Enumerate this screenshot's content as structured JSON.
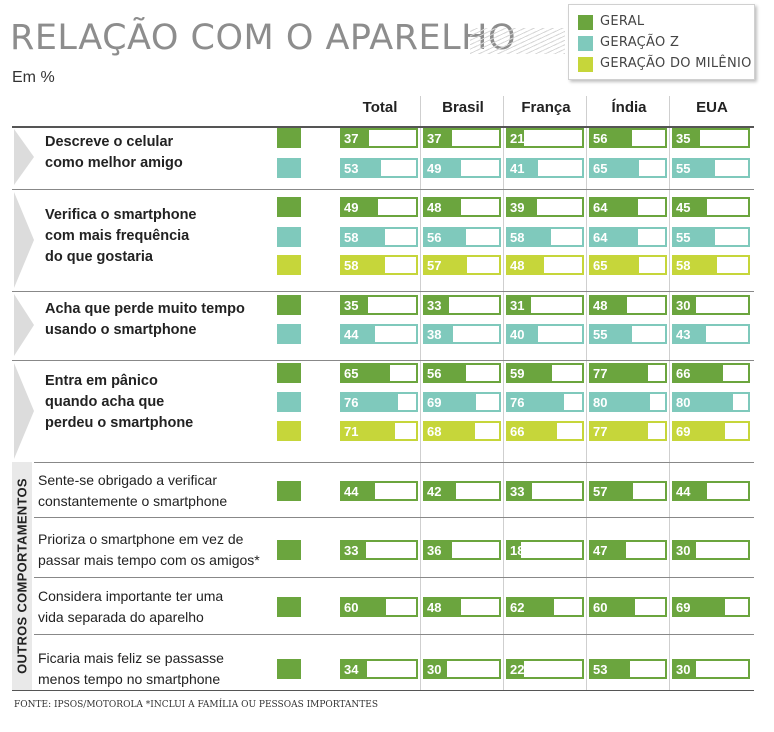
{
  "title": "RELAÇÃO COM O APARELHO",
  "subtitle": "Em %",
  "colors": {
    "geral": "#6ba53e",
    "geracao_z": "#7fc9bc",
    "geracao_milenio": "#c6d63a"
  },
  "legend": [
    {
      "label": "GERAL",
      "key": "geral"
    },
    {
      "label": "GERAÇÃO Z",
      "key": "geracao_z"
    },
    {
      "label": "GERAÇÃO DO MILÊNIO",
      "key": "geracao_milenio"
    }
  ],
  "side_label": "OUTROS COMPORTAMENTOS",
  "source": "FONTE: IPSOS/MOTOROLA     *INCLUI A FAMÍLIA OU PESSOAS IMPORTANTES",
  "chart_data": {
    "type": "table",
    "columns": [
      "Total",
      "Brasil",
      "França",
      "Índia",
      "EUA"
    ],
    "max": 100,
    "groups": [
      {
        "label": [
          "Descreve o celular",
          "como melhor amigo"
        ],
        "style": "main",
        "rows": [
          {
            "series": "geral",
            "values": [
              37,
              37,
              21,
              56,
              35
            ]
          },
          {
            "series": "geracao_z",
            "values": [
              53,
              49,
              41,
              65,
              55
            ]
          }
        ]
      },
      {
        "label": [
          "Verifica o smartphone",
          "com mais frequência",
          "do que gostaria"
        ],
        "style": "main",
        "rows": [
          {
            "series": "geral",
            "values": [
              49,
              48,
              39,
              64,
              45
            ]
          },
          {
            "series": "geracao_z",
            "values": [
              58,
              56,
              58,
              64,
              55
            ]
          },
          {
            "series": "geracao_milenio",
            "values": [
              58,
              57,
              48,
              65,
              58
            ]
          }
        ]
      },
      {
        "label": [
          "Acha que perde muito tempo",
          "usando o smartphone"
        ],
        "style": "main",
        "rows": [
          {
            "series": "geral",
            "values": [
              35,
              33,
              31,
              48,
              30
            ]
          },
          {
            "series": "geracao_z",
            "values": [
              44,
              38,
              40,
              55,
              43
            ]
          }
        ]
      },
      {
        "label": [
          "Entra em pânico",
          "quando acha que",
          "perdeu o smartphone"
        ],
        "style": "main",
        "rows": [
          {
            "series": "geral",
            "values": [
              65,
              56,
              59,
              77,
              66
            ]
          },
          {
            "series": "geracao_z",
            "values": [
              76,
              69,
              76,
              80,
              80
            ]
          },
          {
            "series": "geracao_milenio",
            "values": [
              71,
              68,
              66,
              77,
              69
            ]
          }
        ]
      },
      {
        "label": [
          "Sente-se obrigado a verificar",
          "constantemente o smartphone"
        ],
        "style": "other",
        "rows": [
          {
            "series": "geral",
            "values": [
              44,
              42,
              33,
              57,
              44
            ]
          }
        ]
      },
      {
        "label": [
          "Prioriza o smartphone em vez de",
          "passar mais tempo com os amigos*"
        ],
        "style": "other",
        "rows": [
          {
            "series": "geral",
            "values": [
              33,
              36,
              18,
              47,
              30
            ]
          }
        ]
      },
      {
        "label": [
          "Considera importante ter uma",
          "vida separada do aparelho"
        ],
        "style": "other",
        "rows": [
          {
            "series": "geral",
            "values": [
              60,
              48,
              62,
              60,
              69
            ]
          }
        ]
      },
      {
        "label": [
          "Ficaria mais feliz se passasse",
          "menos tempo no  smartphone"
        ],
        "style": "other",
        "rows": [
          {
            "series": "geral",
            "values": [
              34,
              30,
              22,
              53,
              30
            ]
          }
        ]
      }
    ]
  }
}
